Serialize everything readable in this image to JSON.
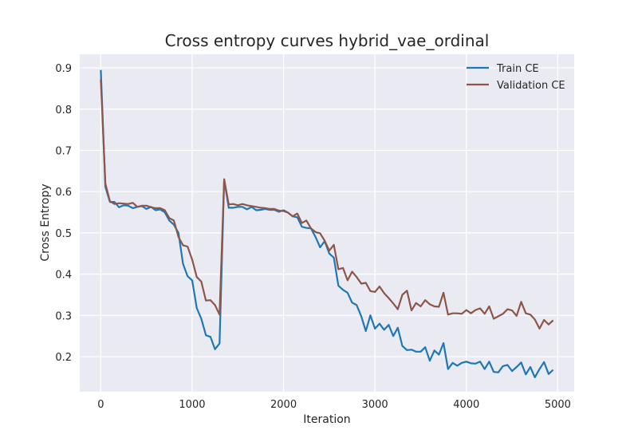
{
  "chart_data": {
    "type": "line",
    "title": "Cross entropy curves hybrid_vae_ordinal",
    "xlabel": "Iteration",
    "ylabel": "Cross Entropy",
    "xlim": [
      -230,
      5180
    ],
    "ylim": [
      0.115,
      0.933
    ],
    "xticks": [
      0,
      1000,
      2000,
      3000,
      4000,
      5000
    ],
    "yticks": [
      0.2,
      0.3,
      0.4,
      0.5,
      0.6,
      0.7,
      0.8,
      0.9
    ],
    "xtick_labels": [
      "0",
      "1000",
      "2000",
      "3000",
      "4000",
      "5000"
    ],
    "ytick_labels": [
      "0.2",
      "0.3",
      "0.4",
      "0.5",
      "0.6",
      "0.7",
      "0.8",
      "0.9"
    ],
    "grid": true,
    "legend_position": "top-right",
    "background": "#eaeaf2",
    "series": [
      {
        "name": "Train CE",
        "color": "#1f77b4",
        "x": [
          0,
          50,
          100,
          150,
          200,
          250,
          300,
          350,
          400,
          450,
          500,
          550,
          600,
          650,
          700,
          750,
          800,
          850,
          900,
          950,
          1000,
          1050,
          1100,
          1150,
          1200,
          1250,
          1300,
          1350,
          1400,
          1450,
          1500,
          1550,
          1600,
          1650,
          1700,
          1750,
          1800,
          1850,
          1900,
          1950,
          2000,
          2050,
          2100,
          2150,
          2200,
          2250,
          2300,
          2350,
          2400,
          2450,
          2500,
          2550,
          2600,
          2650,
          2700,
          2750,
          2800,
          2850,
          2900,
          2950,
          3000,
          3050,
          3100,
          3150,
          3200,
          3250,
          3300,
          3350,
          3400,
          3450,
          3500,
          3550,
          3600,
          3650,
          3700,
          3750,
          3800,
          3850,
          3900,
          3950,
          4000,
          4050,
          4100,
          4150,
          4200,
          4250,
          4300,
          4350,
          4400,
          4450,
          4500,
          4550,
          4600,
          4650,
          4700,
          4750,
          4800,
          4850,
          4900,
          4950
        ],
        "y": [
          0.895,
          0.612,
          0.575,
          0.575,
          0.562,
          0.567,
          0.566,
          0.56,
          0.563,
          0.565,
          0.558,
          0.563,
          0.555,
          0.557,
          0.55,
          0.53,
          0.52,
          0.5,
          0.425,
          0.395,
          0.385,
          0.318,
          0.292,
          0.252,
          0.248,
          0.218,
          0.232,
          0.63,
          0.561,
          0.561,
          0.563,
          0.563,
          0.557,
          0.563,
          0.555,
          0.556,
          0.558,
          0.556,
          0.556,
          0.551,
          0.555,
          0.549,
          0.54,
          0.538,
          0.515,
          0.512,
          0.511,
          0.49,
          0.465,
          0.48,
          0.45,
          0.44,
          0.372,
          0.362,
          0.355,
          0.331,
          0.325,
          0.298,
          0.262,
          0.3,
          0.268,
          0.28,
          0.265,
          0.277,
          0.25,
          0.27,
          0.226,
          0.216,
          0.217,
          0.212,
          0.212,
          0.223,
          0.19,
          0.215,
          0.205,
          0.233,
          0.17,
          0.185,
          0.178,
          0.185,
          0.188,
          0.184,
          0.183,
          0.188,
          0.17,
          0.188,
          0.163,
          0.162,
          0.177,
          0.18,
          0.165,
          0.175,
          0.186,
          0.157,
          0.175,
          0.15,
          0.17,
          0.187,
          0.158,
          0.168
        ]
      },
      {
        "name": "Validation CE",
        "color": "#8c564b",
        "x": [
          0,
          50,
          100,
          150,
          200,
          250,
          300,
          350,
          400,
          450,
          500,
          550,
          600,
          650,
          700,
          750,
          800,
          850,
          900,
          950,
          1000,
          1050,
          1100,
          1150,
          1200,
          1250,
          1300,
          1350,
          1400,
          1450,
          1500,
          1550,
          1600,
          1650,
          1700,
          1750,
          1800,
          1850,
          1900,
          1950,
          2000,
          2050,
          2100,
          2150,
          2200,
          2250,
          2300,
          2350,
          2400,
          2450,
          2500,
          2550,
          2600,
          2650,
          2700,
          2750,
          2800,
          2850,
          2900,
          2950,
          3000,
          3050,
          3100,
          3150,
          3200,
          3250,
          3300,
          3350,
          3400,
          3450,
          3500,
          3550,
          3600,
          3650,
          3700,
          3750,
          3800,
          3850,
          3900,
          3950,
          4000,
          4050,
          4100,
          4150,
          4200,
          4250,
          4300,
          4350,
          4400,
          4450,
          4500,
          4550,
          4600,
          4650,
          4700,
          4750,
          4800,
          4850,
          4900,
          4950
        ],
        "y": [
          0.872,
          0.62,
          0.577,
          0.57,
          0.572,
          0.571,
          0.57,
          0.573,
          0.563,
          0.566,
          0.566,
          0.562,
          0.56,
          0.56,
          0.555,
          0.536,
          0.53,
          0.49,
          0.47,
          0.467,
          0.435,
          0.393,
          0.382,
          0.336,
          0.337,
          0.325,
          0.302,
          0.63,
          0.569,
          0.57,
          0.567,
          0.57,
          0.567,
          0.565,
          0.563,
          0.561,
          0.56,
          0.558,
          0.558,
          0.554,
          0.553,
          0.549,
          0.54,
          0.547,
          0.524,
          0.53,
          0.511,
          0.502,
          0.499,
          0.481,
          0.457,
          0.471,
          0.412,
          0.415,
          0.385,
          0.406,
          0.393,
          0.377,
          0.379,
          0.359,
          0.357,
          0.37,
          0.354,
          0.342,
          0.329,
          0.315,
          0.35,
          0.36,
          0.312,
          0.33,
          0.322,
          0.337,
          0.327,
          0.322,
          0.321,
          0.355,
          0.302,
          0.305,
          0.305,
          0.304,
          0.313,
          0.305,
          0.313,
          0.317,
          0.304,
          0.322,
          0.292,
          0.298,
          0.304,
          0.315,
          0.312,
          0.299,
          0.333,
          0.305,
          0.302,
          0.29,
          0.268,
          0.289,
          0.278,
          0.288
        ]
      }
    ]
  }
}
